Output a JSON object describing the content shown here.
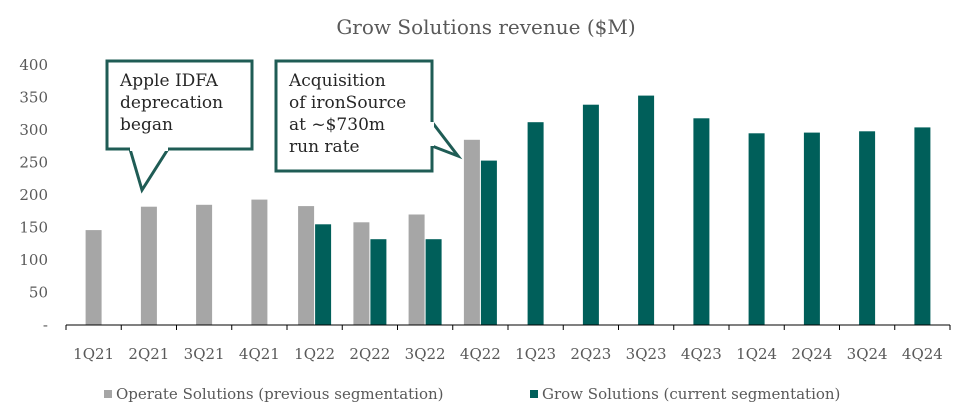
{
  "chart_data": {
    "type": "bar",
    "title": "Grow Solutions revenue ($M)",
    "xlabel": "",
    "ylabel": "",
    "ylim": [
      0,
      400
    ],
    "yticks": [
      "-",
      "50",
      "100",
      "150",
      "200",
      "250",
      "300",
      "350",
      "400"
    ],
    "categories": [
      "1Q21",
      "2Q21",
      "3Q21",
      "4Q21",
      "1Q22",
      "2Q22",
      "3Q22",
      "4Q22",
      "1Q23",
      "2Q23",
      "3Q23",
      "4Q23",
      "1Q24",
      "2Q24",
      "3Q24",
      "4Q24"
    ],
    "series": [
      {
        "name": "Operate Solutions (previous segmentation)",
        "color": "#a6a6a6",
        "values": [
          146,
          182,
          185,
          193,
          183,
          158,
          170,
          285,
          null,
          null,
          null,
          null,
          null,
          null,
          null,
          null
        ]
      },
      {
        "name": "Grow Solutions (current segmentation)",
        "color": "#005f5a",
        "values": [
          null,
          null,
          null,
          null,
          155,
          132,
          132,
          253,
          312,
          339,
          353,
          318,
          295,
          296,
          298,
          304
        ]
      }
    ],
    "legend": "bottom",
    "grid": false,
    "annotations": [
      {
        "lines": [
          "Apple IDFA",
          "deprecation",
          "began"
        ],
        "points_to": "2Q21"
      },
      {
        "lines": [
          "Acquisition",
          "of ironSource",
          "at ~$730m",
          "run rate"
        ],
        "points_to": "4Q22"
      }
    ]
  }
}
